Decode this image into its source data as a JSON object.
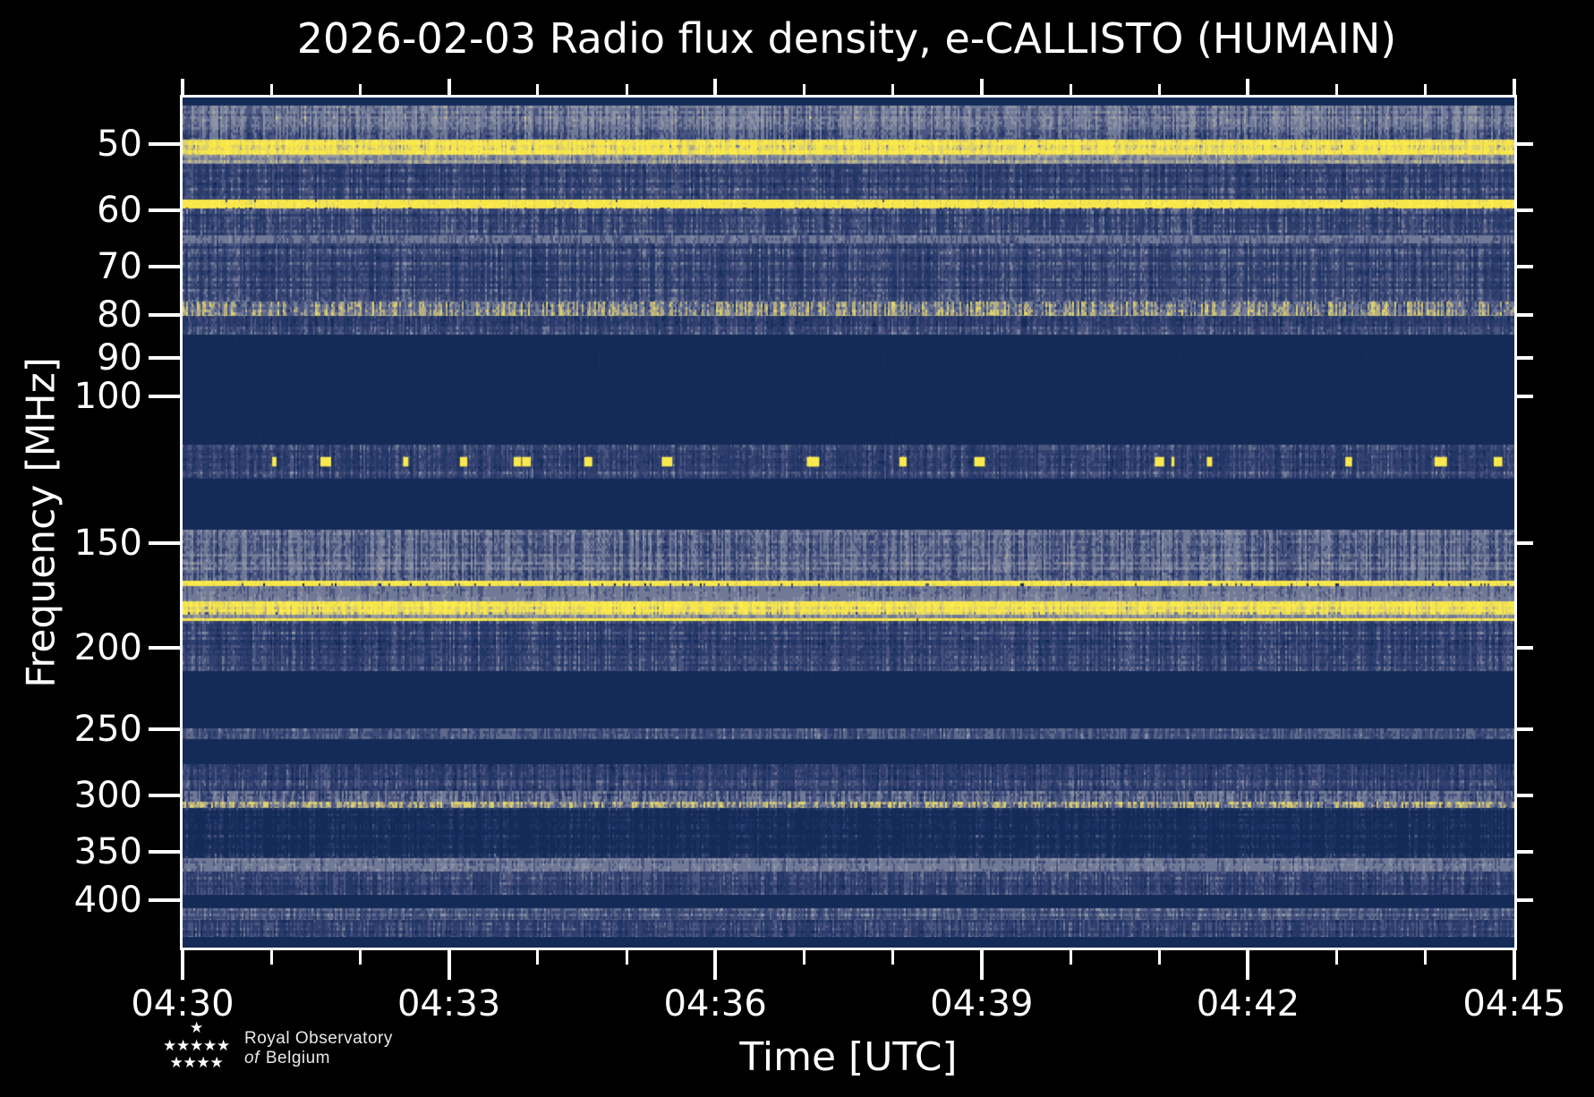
{
  "chart_data": {
    "type": "heatmap",
    "subtype": "radio-spectrogram",
    "title": "2026-02-03 Radio flux density, e-CALLISTO (HUMAIN)",
    "xlabel": "Time [UTC]",
    "ylabel": "Frequency [MHz]",
    "legend": "none",
    "grid": false,
    "x_axis": {
      "start": "04:30",
      "end": "04:45",
      "major_tick_labels": [
        "04:30",
        "04:33",
        "04:36",
        "04:39",
        "04:42",
        "04:45"
      ],
      "major_every_minutes": 3,
      "minor_every_minutes": 1,
      "total_minutes": 15
    },
    "y_axis": {
      "scale": "log",
      "lim_mhz": [
        44,
        456
      ],
      "tick_labels_mhz": [
        50,
        60,
        70,
        80,
        90,
        100,
        150,
        200,
        250,
        300,
        350,
        400
      ]
    },
    "colormap": {
      "background_quiet": "#142a57",
      "blip_color": "#fae94e",
      "palettes": {
        "quiet": [
          [
            "#142a57",
            0.97
          ],
          [
            "#1b3161",
            0.03
          ]
        ],
        "blue": [
          [
            "#142a57",
            0.16
          ],
          [
            "#233767",
            0.22
          ],
          [
            "#31406f",
            0.2
          ],
          [
            "#4a5580",
            0.19
          ],
          [
            "#707a96",
            0.14
          ],
          [
            "#8d92a5",
            0.08
          ],
          [
            "#c3bd8d",
            0.01
          ]
        ],
        "active": [
          [
            "#1b3060",
            0.12
          ],
          [
            "#2f3f6e",
            0.16
          ],
          [
            "#4a5580",
            0.18
          ],
          [
            "#707a96",
            0.22
          ],
          [
            "#8d92a5",
            0.2
          ],
          [
            "#b0ab95",
            0.07
          ],
          [
            "#ddd27b",
            0.04
          ],
          [
            "#f7e64a",
            0.01
          ]
        ],
        "strong": [
          [
            "#2f3f6e",
            0.05
          ],
          [
            "#707a96",
            0.1
          ],
          [
            "#b5ad80",
            0.13
          ],
          [
            "#ddd26b",
            0.2
          ],
          [
            "#f7e64a",
            0.32
          ],
          [
            "#ffef55",
            0.2
          ]
        ],
        "pale": [
          [
            "#4a5580",
            0.15
          ],
          [
            "#707a96",
            0.3
          ],
          [
            "#9a9a97",
            0.3
          ],
          [
            "#c4bc87",
            0.2
          ],
          [
            "#ddd27b",
            0.05
          ]
        ],
        "line": [
          [
            "#142a57",
            0.2
          ],
          [
            "#4a5580",
            0.06
          ],
          [
            "#ddd26b",
            0.14
          ],
          [
            "#f7e64a",
            0.4
          ],
          [
            "#ffef55",
            0.2
          ]
        ],
        "gray": [
          [
            "#31406f",
            0.15
          ],
          [
            "#4a5580",
            0.2
          ],
          [
            "#707a96",
            0.35
          ],
          [
            "#8d92a5",
            0.25
          ],
          [
            "#c3bd8d",
            0.05
          ]
        ],
        "medyellow": [
          [
            "#233767",
            0.2
          ],
          [
            "#4a5580",
            0.15
          ],
          [
            "#707a96",
            0.15
          ],
          [
            "#b5ad80",
            0.15
          ],
          [
            "#ddd26b",
            0.2
          ],
          [
            "#f7e64a",
            0.15
          ]
        ],
        "sparse": [
          [
            "#142a57",
            0.55
          ],
          [
            "#1d3262",
            0.2
          ],
          [
            "#31406f",
            0.12
          ],
          [
            "#4a5580",
            0.08
          ],
          [
            "#707a96",
            0.05
          ]
        ],
        "dense": [
          [
            "#2a3a6a",
            0.25
          ],
          [
            "#3d4b78",
            0.25
          ],
          [
            "#5f6a8b",
            0.25
          ],
          [
            "#8d92a5",
            0.25
          ]
        ]
      }
    },
    "bands": [
      {
        "mhz": [
          44,
          45
        ],
        "texture": "quiet"
      },
      {
        "mhz": [
          45,
          49.4
        ],
        "texture": "active"
      },
      {
        "mhz": [
          49.4,
          51.5
        ],
        "texture": "strong"
      },
      {
        "mhz": [
          51.5,
          52.8
        ],
        "texture": "pale"
      },
      {
        "mhz": [
          52.8,
          58.3
        ],
        "texture": "blue"
      },
      {
        "mhz": [
          58.3,
          59.7
        ],
        "texture": "line"
      },
      {
        "mhz": [
          59.7,
          64.3
        ],
        "texture": "blue"
      },
      {
        "mhz": [
          64.3,
          65.7
        ],
        "texture": "gray"
      },
      {
        "mhz": [
          65.7,
          77.2
        ],
        "texture": "blue"
      },
      {
        "mhz": [
          77.2,
          80.3
        ],
        "texture": "medyellow"
      },
      {
        "mhz": [
          80.3,
          84.5
        ],
        "texture": "blue"
      },
      {
        "mhz": [
          84.5,
          114.3
        ],
        "texture": "quiet"
      },
      {
        "mhz": [
          114.3,
          125.4
        ],
        "texture": "blips"
      },
      {
        "mhz": [
          125.4,
          144.3
        ],
        "texture": "quiet"
      },
      {
        "mhz": [
          144.3,
          166.3
        ],
        "texture": "active"
      },
      {
        "mhz": [
          166.3,
          168.9
        ],
        "texture": "line"
      },
      {
        "mhz": [
          168.9,
          176
        ],
        "texture": "gray"
      },
      {
        "mhz": [
          176,
          182.5
        ],
        "texture": "strong"
      },
      {
        "mhz": [
          182.5,
          184.1
        ],
        "texture": "pale"
      },
      {
        "mhz": [
          184.1,
          185.8
        ],
        "texture": "line"
      },
      {
        "mhz": [
          185.8,
          212.9
        ],
        "texture": "blue"
      },
      {
        "mhz": [
          212.9,
          249.8
        ],
        "texture": "quiet"
      },
      {
        "mhz": [
          249.8,
          257.2
        ],
        "texture": "dense"
      },
      {
        "mhz": [
          257.2,
          275.6
        ],
        "texture": "quiet"
      },
      {
        "mhz": [
          275.6,
          296.3
        ],
        "texture": "blue"
      },
      {
        "mhz": [
          296.3,
          305.3
        ],
        "texture": "active"
      },
      {
        "mhz": [
          305.3,
          310.3
        ],
        "texture": "medyellow"
      },
      {
        "mhz": [
          310.3,
          356.8
        ],
        "texture": "sparse"
      },
      {
        "mhz": [
          356.8,
          369.5
        ],
        "texture": "gray"
      },
      {
        "mhz": [
          369.5,
          394.3
        ],
        "texture": "blue"
      },
      {
        "mhz": [
          394.3,
          408.7
        ],
        "texture": "quiet"
      },
      {
        "mhz": [
          408.7,
          423
        ],
        "texture": "dense"
      },
      {
        "mhz": [
          423,
          443.2
        ],
        "texture": "blue"
      },
      {
        "mhz": [
          443.2,
          456
        ],
        "texture": "quiet"
      }
    ]
  },
  "branding": {
    "org_line1": "Royal Observatory",
    "org_line2_prefix": "of",
    "org_line2": "Belgium",
    "stars_rows": [
      1,
      5,
      4
    ]
  }
}
